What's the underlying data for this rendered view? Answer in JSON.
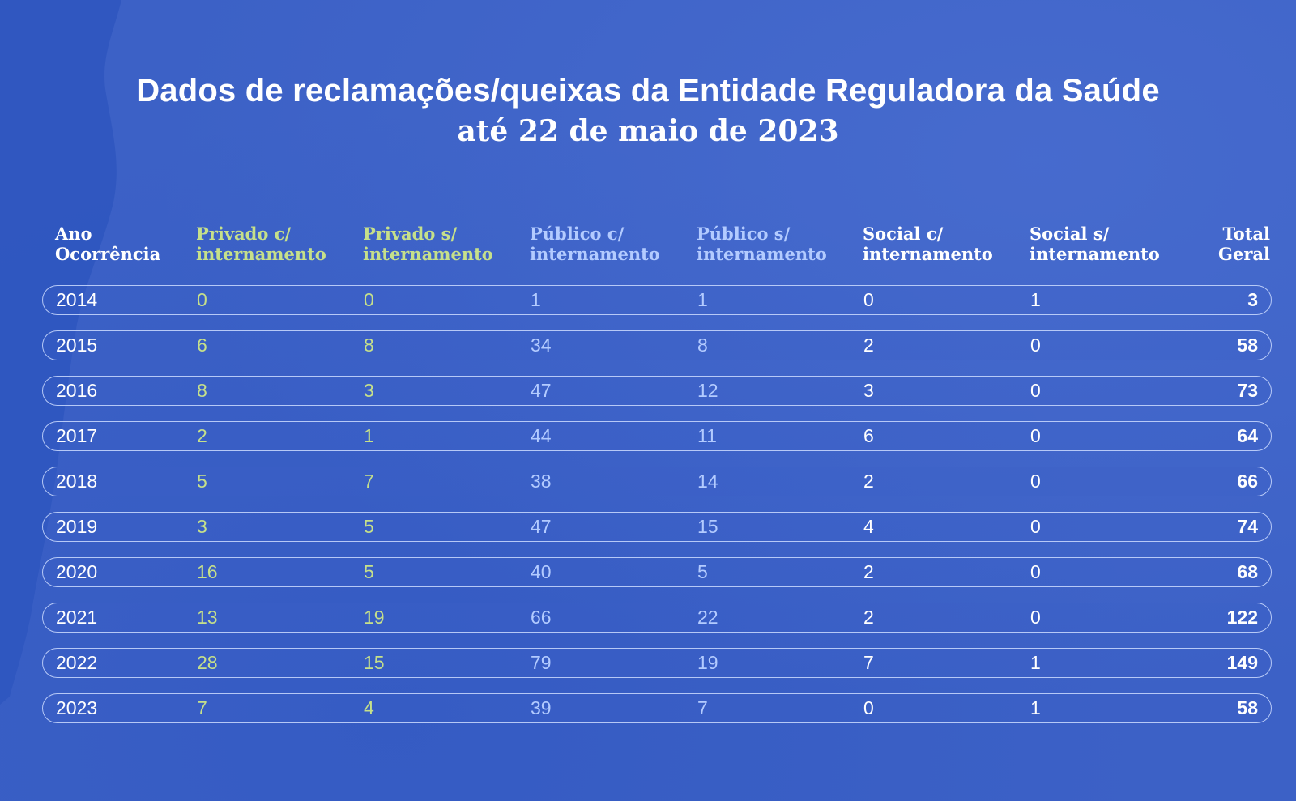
{
  "title": "Dados de reclamações/queixas da Entidade Reguladora da Saúde",
  "subtitle": "até 22 de maio de 2023",
  "colors": {
    "background": "#3c61c6",
    "text_white": "#ffffff",
    "privado": "#c6e08a",
    "publico": "#b3cbff",
    "row_border": "#cddcff"
  },
  "chart_data": {
    "type": "table",
    "columns": [
      "Ano\nOcorrência",
      "Privado c/\ninternamento",
      "Privado s/\ninternamento",
      "Público c/\ninternamento",
      "Público s/\ninternamento",
      "Social c/\ninternamento",
      "Social s/\ninternamento",
      "Total\nGeral"
    ],
    "rows": [
      [
        "2014",
        "0",
        "0",
        "1",
        "1",
        "0",
        "1",
        "3"
      ],
      [
        "2015",
        "6",
        "8",
        "34",
        "8",
        "2",
        "0",
        "58"
      ],
      [
        "2016",
        "8",
        "3",
        "47",
        "12",
        "3",
        "0",
        "73"
      ],
      [
        "2017",
        "2",
        "1",
        "44",
        "11",
        "6",
        "0",
        "64"
      ],
      [
        "2018",
        "5",
        "7",
        "38",
        "14",
        "2",
        "0",
        "66"
      ],
      [
        "2019",
        "3",
        "5",
        "47",
        "15",
        "4",
        "0",
        "74"
      ],
      [
        "2020",
        "16",
        "5",
        "40",
        "5",
        "2",
        "0",
        "68"
      ],
      [
        "2021",
        "13",
        "19",
        "66",
        "22",
        "2",
        "0",
        "122"
      ],
      [
        "2022",
        "28",
        "15",
        "79",
        "19",
        "7",
        "1",
        "149"
      ],
      [
        "2023",
        "7",
        "4",
        "39",
        "7",
        "0",
        "1",
        "58"
      ]
    ]
  }
}
